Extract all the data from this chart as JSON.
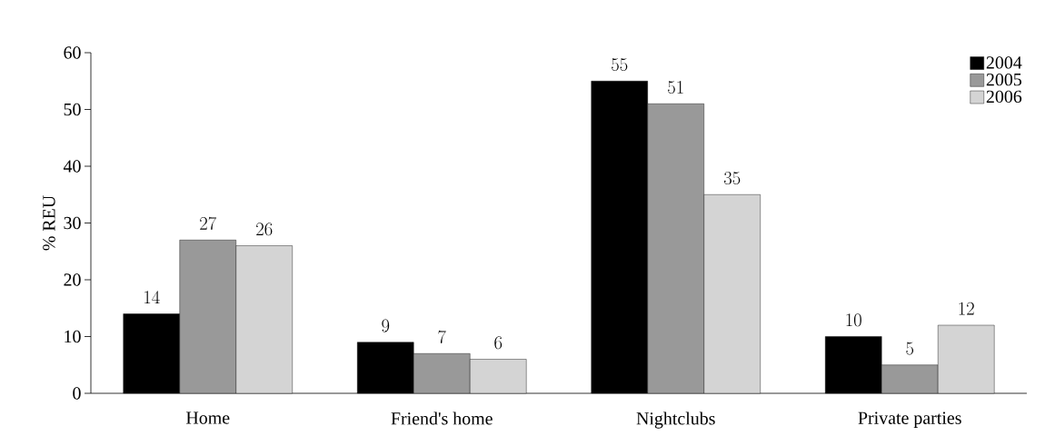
{
  "chart_data": {
    "type": "bar",
    "ylabel": "% REU",
    "categories": [
      "Home",
      "Friend's home",
      "Nightclubs",
      "Private parties"
    ],
    "series": [
      {
        "name": "2004",
        "color": "#000000",
        "values": [
          14,
          9,
          55,
          10
        ]
      },
      {
        "name": "2005",
        "color": "#999999",
        "values": [
          27,
          7,
          51,
          5
        ]
      },
      {
        "name": "2006",
        "color": "#d4d4d4",
        "values": [
          26,
          6,
          35,
          12
        ]
      }
    ],
    "ylim": [
      0,
      60
    ],
    "yticks": [
      0,
      10,
      20,
      30,
      40,
      50,
      60
    ],
    "data_labels": true,
    "legend": "top right"
  }
}
